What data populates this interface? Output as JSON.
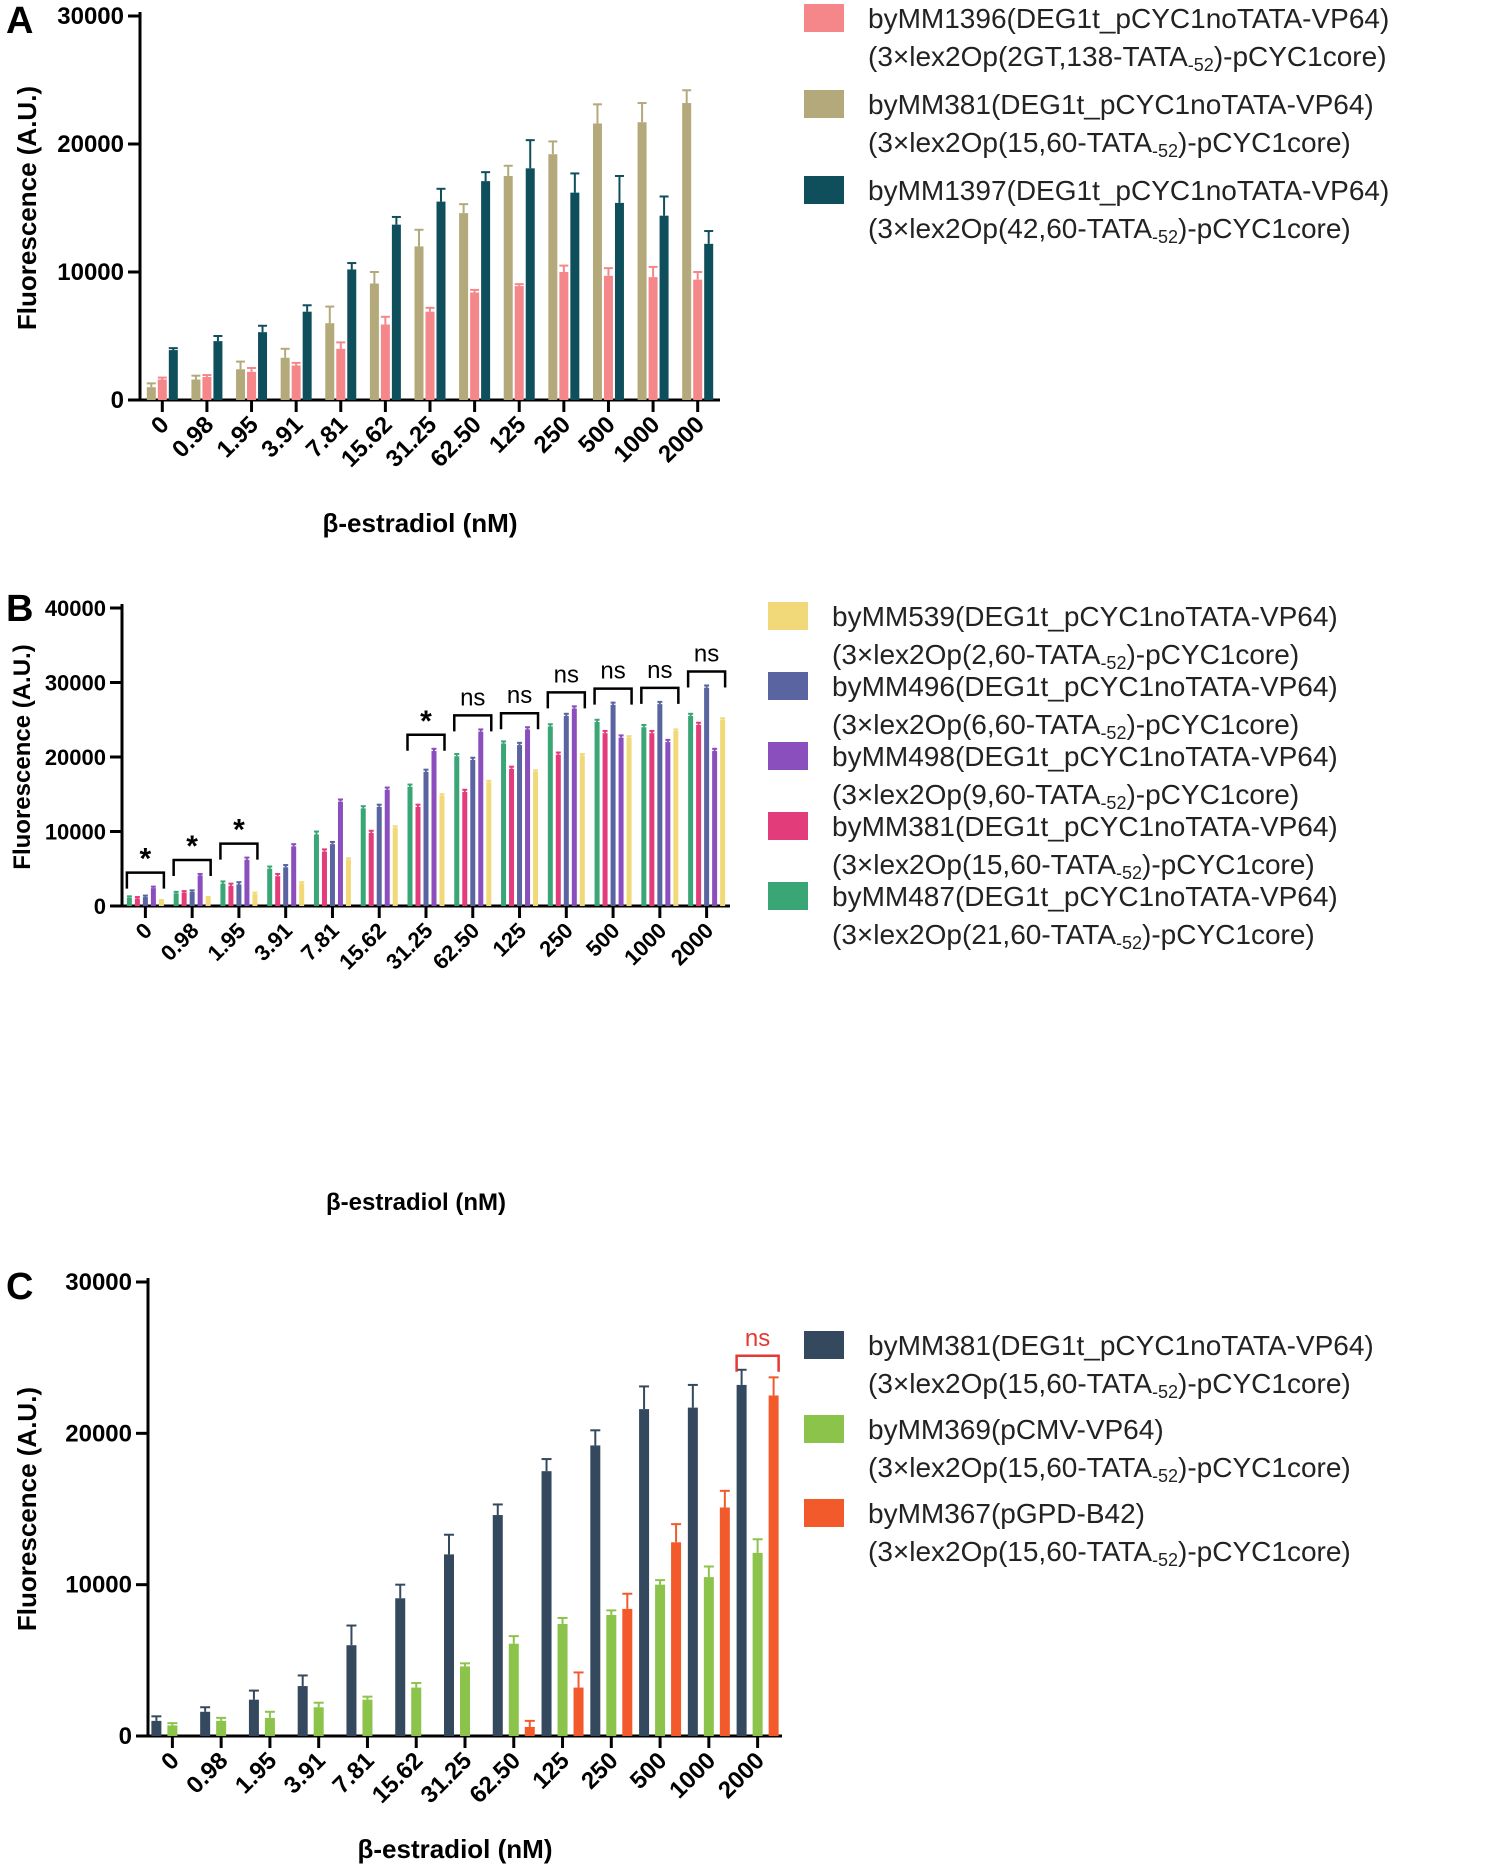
{
  "chart_data": [
    {
      "panel": "A",
      "type": "bar",
      "xlabel": "β-estradiol (nM)",
      "ylabel": "Fluorescence (A.U.)",
      "ylim": [
        0,
        30000
      ],
      "yticks": [
        "0",
        "10000",
        "20000",
        "30000"
      ],
      "categories": [
        "0",
        "0.98",
        "1.95",
        "3.91",
        "7.81",
        "15.62",
        "31.25",
        "62.50",
        "125",
        "250",
        "500",
        "1000",
        "2000"
      ],
      "series": [
        {
          "name": "byMM381",
          "legend_line1": "byMM381(DEG1t_pCYC1noTATA-VP64)",
          "legend_line2_pre": "(3×lex2Op(15,60-TATA",
          "legend_sub": "-52",
          "legend_line2_post": ")-pCYC1core)",
          "color": "#b3a97a",
          "values": [
            1000,
            1600,
            2400,
            3300,
            6000,
            9100,
            12000,
            14600,
            17500,
            19200,
            21600,
            21700,
            23200
          ],
          "errors": [
            300,
            300,
            600,
            700,
            1300,
            900,
            1300,
            700,
            800,
            1000,
            1500,
            1500,
            1000
          ]
        },
        {
          "name": "byMM1396",
          "legend_line1": "byMM1396(DEG1t_pCYC1noTATA-VP64)",
          "legend_line2_pre": "(3×lex2Op(2GT,138-TATA",
          "legend_sub": "-52",
          "legend_line2_post": ")-pCYC1core)",
          "color": "#f5868a",
          "values": [
            1600,
            1800,
            2200,
            2700,
            4000,
            5900,
            6900,
            8400,
            8900,
            10000,
            9700,
            9600,
            9400
          ],
          "errors": [
            150,
            150,
            300,
            200,
            500,
            600,
            300,
            200,
            150,
            500,
            600,
            800,
            600
          ]
        },
        {
          "name": "byMM1397",
          "legend_line1": "byMM1397(DEG1t_pCYC1noTATA-VP64)",
          "legend_line2_pre": "(3×lex2Op(42,60-TATA",
          "legend_sub": "-52",
          "legend_line2_post": ")-pCYC1core)",
          "color": "#0f4f5c",
          "values": [
            3900,
            4600,
            5300,
            6900,
            10200,
            13700,
            15500,
            17100,
            18100,
            16200,
            15400,
            14400,
            12200
          ],
          "errors": [
            150,
            400,
            500,
            500,
            500,
            600,
            1000,
            700,
            2200,
            1500,
            2100,
            1500,
            1000
          ]
        }
      ],
      "legend_order": [
        1,
        0,
        2
      ]
    },
    {
      "panel": "B",
      "type": "bar",
      "xlabel": "β-estradiol (nM)",
      "ylabel": "Fluorescence (A.U.)",
      "ylim": [
        0,
        40000
      ],
      "yticks": [
        "0",
        "10000",
        "20000",
        "30000",
        "40000"
      ],
      "categories": [
        "0",
        "0.98",
        "1.95",
        "3.91",
        "7.81",
        "15.62",
        "31.25",
        "62.50",
        "125",
        "250",
        "500",
        "1000",
        "2000"
      ],
      "series": [
        {
          "name": "byMM487",
          "legend_line1": "byMM487(DEG1t_pCYC1noTATA-VP64)",
          "legend_line2_pre": "(3×lex2Op(21,60-TATA",
          "legend_sub": "-52",
          "legend_line2_post": ")-pCYC1core)",
          "color": "#3aa676",
          "values": [
            1100,
            1700,
            3000,
            5000,
            9600,
            13100,
            16000,
            20100,
            21800,
            24100,
            24700,
            24000,
            25500
          ],
          "errors": [
            200,
            200,
            300,
            300,
            400,
            300,
            300,
            300,
            300,
            300,
            300,
            300,
            300
          ]
        },
        {
          "name": "byMM381",
          "legend_line1": "byMM381(DEG1t_pCYC1noTATA-VP64)",
          "legend_line2_pre": "(3×lex2Op(15,60-TATA",
          "legend_sub": "-52",
          "legend_line2_post": ")-pCYC1core)",
          "color": "#e23c7b",
          "values": [
            1000,
            1800,
            2700,
            4000,
            7300,
            9800,
            13300,
            15300,
            18400,
            20300,
            23200,
            23200,
            24300
          ],
          "errors": [
            200,
            200,
            300,
            300,
            300,
            300,
            300,
            300,
            300,
            300,
            300,
            300,
            300
          ]
        },
        {
          "name": "byMM496",
          "legend_line1": "byMM496(DEG1t_pCYC1noTATA-VP64)",
          "legend_line2_pre": "(3×lex2Op(6,60-TATA",
          "legend_sub": "-52",
          "legend_line2_post": ")-pCYC1core)",
          "color": "#5a64a1",
          "values": [
            1200,
            1900,
            2900,
            5200,
            8300,
            13300,
            18000,
            19600,
            21600,
            25500,
            27000,
            27100,
            29300
          ],
          "errors": [
            200,
            200,
            300,
            300,
            300,
            300,
            300,
            300,
            300,
            300,
            300,
            300,
            300
          ]
        },
        {
          "name": "byMM498",
          "legend_line1": "byMM498(DEG1t_pCYC1noTATA-VP64)",
          "legend_line2_pre": "(3×lex2Op(9,60-TATA",
          "legend_sub": "-52",
          "legend_line2_post": ")-pCYC1core)",
          "color": "#8a4fbd",
          "values": [
            2400,
            4100,
            6200,
            8000,
            14000,
            15600,
            20800,
            23400,
            23700,
            26500,
            22600,
            22000,
            20800
          ],
          "errors": [
            200,
            200,
            300,
            300,
            300,
            300,
            300,
            300,
            300,
            300,
            300,
            300,
            300
          ]
        },
        {
          "name": "byMM539",
          "legend_line1": "byMM539(DEG1t_pCYC1noTATA-VP64)",
          "legend_line2_pre": "(3×lex2Op(2,60-TATA",
          "legend_sub": "-52",
          "legend_line2_post": ")-pCYC1core)",
          "color": "#f1d97a",
          "values": [
            700,
            1100,
            1600,
            3000,
            6200,
            10500,
            14800,
            16600,
            18000,
            20200,
            22600,
            23500,
            25000
          ],
          "errors": [
            100,
            100,
            200,
            200,
            200,
            200,
            200,
            200,
            200,
            200,
            200,
            200,
            200
          ]
        }
      ],
      "legend_order": [
        4,
        2,
        3,
        1,
        0
      ],
      "significance": [
        "*",
        "*",
        "*",
        "",
        "",
        "",
        "*",
        "ns",
        "ns",
        "ns",
        "ns",
        "ns",
        "ns"
      ]
    },
    {
      "panel": "C",
      "type": "bar",
      "xlabel": "β-estradiol (nM)",
      "ylabel": "Fluorescence (A.U.)",
      "ylim": [
        0,
        30000
      ],
      "yticks": [
        "0",
        "10000",
        "20000",
        "30000"
      ],
      "categories": [
        "0",
        "0.98",
        "1.95",
        "3.91",
        "7.81",
        "15.62",
        "31.25",
        "62.50",
        "125",
        "250",
        "500",
        "1000",
        "2000"
      ],
      "series": [
        {
          "name": "byMM381",
          "legend_line1": "byMM381(DEG1t_pCYC1noTATA-VP64)",
          "legend_line2_pre": "(3×lex2Op(15,60-TATA",
          "legend_sub": "-52",
          "legend_line2_post": ")-pCYC1core)",
          "color": "#34495e",
          "values": [
            1000,
            1600,
            2400,
            3300,
            6000,
            9100,
            12000,
            14600,
            17500,
            19200,
            21600,
            21700,
            23200
          ],
          "errors": [
            300,
            300,
            600,
            700,
            1300,
            900,
            1300,
            700,
            800,
            1000,
            1500,
            1500,
            1000
          ]
        },
        {
          "name": "byMM369",
          "legend_line1": "byMM369(pCMV-VP64)",
          "legend_line2_pre": "(3×lex2Op(15,60-TATA",
          "legend_sub": "-52",
          "legend_line2_post": ")-pCYC1core)",
          "color": "#8cc34b",
          "values": [
            700,
            1000,
            1200,
            1900,
            2400,
            3200,
            4600,
            6100,
            7400,
            8000,
            10000,
            10500,
            12100
          ],
          "errors": [
            150,
            200,
            400,
            300,
            200,
            300,
            200,
            500,
            400,
            300,
            300,
            700,
            900
          ]
        },
        {
          "name": "byMM367",
          "legend_line1": "byMM367(pGPD-B42)",
          "legend_line2_pre": "(3×lex2Op(15,60-TATA",
          "legend_sub": "-52",
          "legend_line2_post": ")-pCYC1core)",
          "color": "#f25a2c",
          "values": [
            0,
            0,
            0,
            0,
            0,
            0,
            0,
            600,
            3200,
            8400,
            12800,
            15100,
            22500
          ],
          "errors": [
            0,
            0,
            0,
            0,
            0,
            0,
            0,
            400,
            1000,
            1000,
            1200,
            1100,
            1200
          ]
        }
      ],
      "legend_order": [
        0,
        1,
        2
      ],
      "significance": [
        "",
        "",
        "",
        "",
        "",
        "",
        "",
        "",
        "",
        "",
        "",
        "",
        "ns"
      ],
      "significance_color": "#e53935"
    }
  ],
  "ui": {
    "axis_color": "#000000",
    "panel_letters": [
      "A",
      "B",
      "C"
    ]
  }
}
